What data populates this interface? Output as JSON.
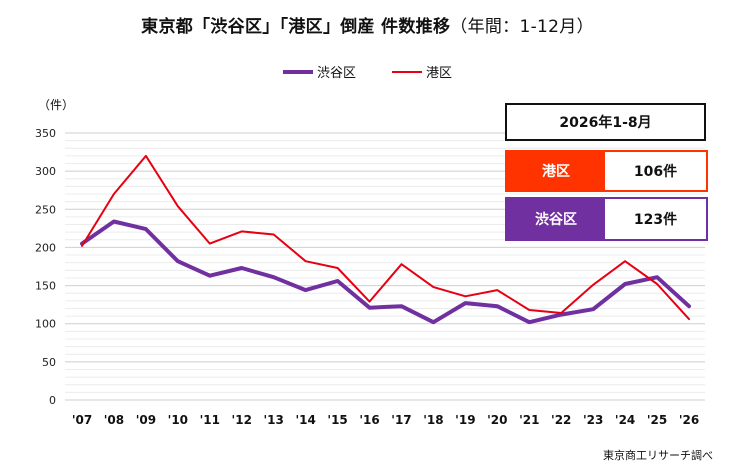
{
  "title": "東京都「渋谷区」「港区」倒産  件数推移",
  "title_sub": "（年間：1-12月）",
  "y_unit": "（件）",
  "source": "東京商工リサーチ調べ",
  "summary": {
    "period": "2026年1-8月",
    "minato_label": "港区",
    "minato_value": "106件",
    "shibuya_label": "渋谷区",
    "shibuya_value": "123件"
  },
  "colors": {
    "shibuya": "#7030a0",
    "minato": "#e60012",
    "grid": "#d9d9d9"
  },
  "chart_data": {
    "type": "line",
    "categories": [
      "'07",
      "'08",
      "'09",
      "'10",
      "'11",
      "'12",
      "'13",
      "'14",
      "'15",
      "'16",
      "'17",
      "'18",
      "'19",
      "'20",
      "'21",
      "'22",
      "'23",
      "'24",
      "'25",
      "'26"
    ],
    "ylim": [
      0,
      350
    ],
    "yticks": [
      0,
      50,
      100,
      150,
      200,
      250,
      300,
      350
    ],
    "grid": true,
    "legend_position": "top-center",
    "series": [
      {
        "name": "渋谷区",
        "values": [
          205,
          234,
          224,
          182,
          163,
          173,
          161,
          144,
          156,
          121,
          123,
          102,
          127,
          123,
          102,
          112,
          119,
          152,
          161,
          123
        ]
      },
      {
        "name": "港区",
        "values": [
          202,
          270,
          320,
          254,
          205,
          221,
          217,
          182,
          173,
          129,
          178,
          148,
          136,
          144,
          118,
          114,
          151,
          182,
          152,
          106
        ]
      }
    ]
  }
}
